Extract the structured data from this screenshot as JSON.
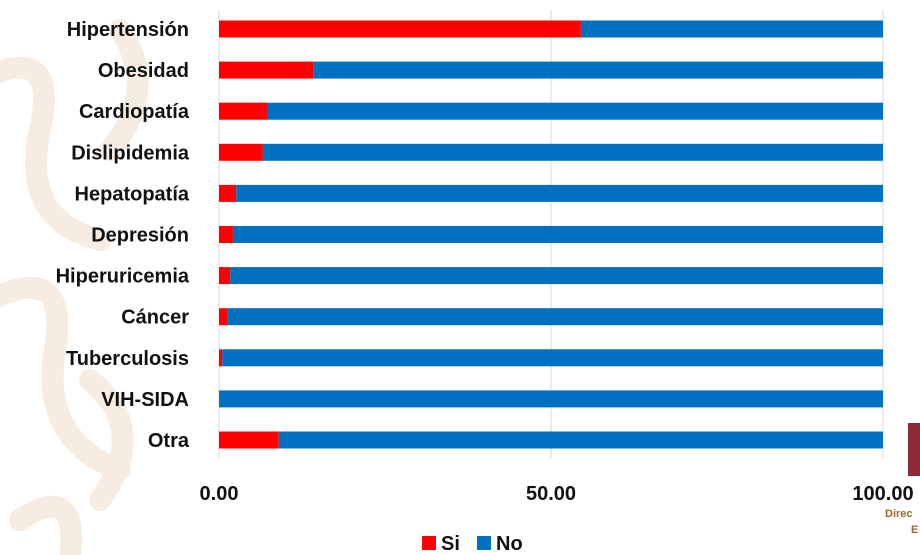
{
  "colors": {
    "si": "#ff0000",
    "no": "#0070c0",
    "gridline": "#d9d9d9",
    "pattern": "#f6ece2",
    "logo_block": "#8e2a3a",
    "logo_text": "#9c6b2e"
  },
  "logo": {
    "text_line1": "Direc",
    "text_line2": "E"
  },
  "chart_data": {
    "type": "bar",
    "orientation": "horizontal",
    "stacked": true,
    "categories": [
      "Hipertensión",
      "Obesidad",
      "Cardiopatía",
      "Dislipidemia",
      "Hepatopatía",
      "Depresión",
      "Hiperuricemia",
      "Cáncer",
      "Tuberculosis",
      "VIH-SIDA",
      "Otra"
    ],
    "series": [
      {
        "name": "Si",
        "color": "#ff0000",
        "values": [
          54.5,
          14.2,
          7.3,
          6.6,
          2.6,
          2.1,
          1.7,
          1.3,
          0.5,
          0.1,
          9.0
        ]
      },
      {
        "name": "No",
        "color": "#0070c0",
        "values": [
          45.5,
          85.8,
          92.7,
          93.4,
          97.4,
          97.9,
          98.3,
          98.7,
          99.5,
          99.9,
          91.0
        ]
      }
    ],
    "xlim": [
      0,
      100
    ],
    "xticks": [
      0,
      50,
      100
    ],
    "xtick_labels": [
      "0.00",
      "50.00",
      "100.00"
    ],
    "grid": true,
    "legend_position": "bottom",
    "legend": [
      {
        "label": "Si",
        "color": "#ff0000"
      },
      {
        "label": "No",
        "color": "#0070c0"
      }
    ]
  }
}
